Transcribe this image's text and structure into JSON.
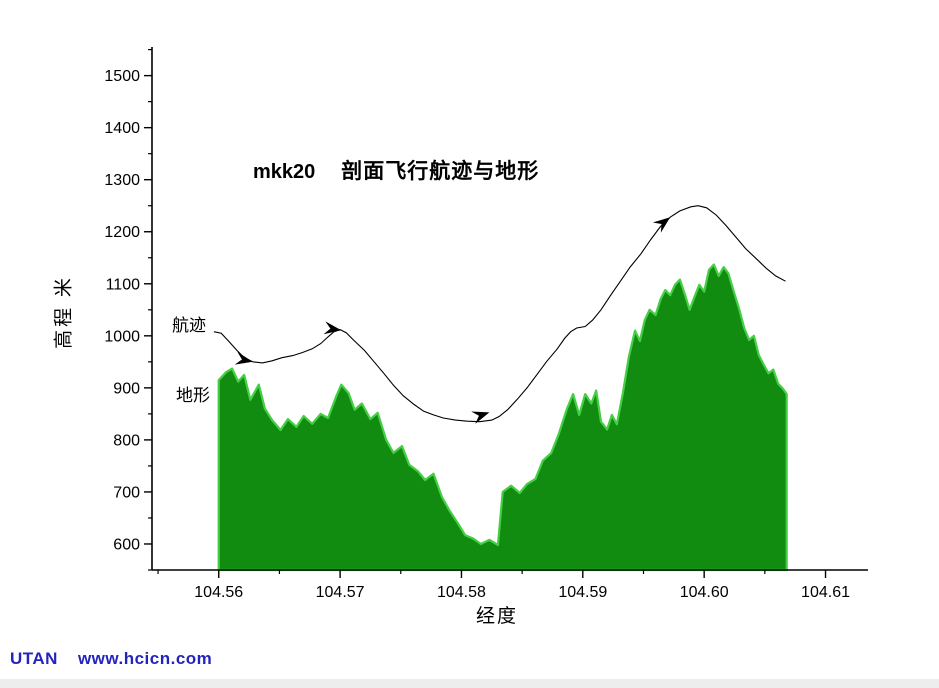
{
  "footer": {
    "brand": "UTAN",
    "url": "www.hcicn.com"
  },
  "chart_data": {
    "type": "line",
    "title_model": "mkk20",
    "title_text": "剖面飞行航迹与地形",
    "xlabel": "经度",
    "ylabel": "高程 米",
    "xlim": [
      104.5545,
      104.6135
    ],
    "ylim": [
      550,
      1555
    ],
    "x_tick_values": [
      104.56,
      104.57,
      104.58,
      104.59,
      104.6,
      104.61
    ],
    "x_tick_labels": [
      "104.56",
      "104.57",
      "104.58",
      "104.59",
      "104.60",
      "104.61"
    ],
    "x_minor_ticks": [
      104.555,
      104.565,
      104.575,
      104.585,
      104.595,
      104.605
    ],
    "y_tick_values": [
      600,
      700,
      800,
      900,
      1000,
      1100,
      1200,
      1300,
      1400,
      1500
    ],
    "y_tick_labels": [
      "600",
      "700",
      "800",
      "900",
      "1000",
      "1100",
      "1200",
      "1300",
      "1400",
      "1500"
    ],
    "y_minor_ticks": [
      550,
      650,
      750,
      850,
      950,
      1050,
      1150,
      1250,
      1350,
      1450,
      1550
    ],
    "annotations": {
      "track_label": "航迹",
      "terrain_label": "地形"
    },
    "series": {
      "track": {
        "name": "航迹",
        "color": "#000000",
        "points": [
          [
            104.5596,
            1008
          ],
          [
            104.5602,
            1005
          ],
          [
            104.5608,
            990
          ],
          [
            104.5615,
            972
          ],
          [
            104.5621,
            958
          ],
          [
            104.5628,
            950
          ],
          [
            104.5636,
            948
          ],
          [
            104.5644,
            952
          ],
          [
            104.5652,
            958
          ],
          [
            104.5661,
            962
          ],
          [
            104.5669,
            968
          ],
          [
            104.5677,
            975
          ],
          [
            104.5684,
            985
          ],
          [
            104.569,
            998
          ],
          [
            104.5695,
            1008
          ],
          [
            104.57,
            1012
          ],
          [
            104.5705,
            1006
          ],
          [
            104.5711,
            992
          ],
          [
            104.572,
            972
          ],
          [
            104.5728,
            950
          ],
          [
            104.5736,
            928
          ],
          [
            104.5744,
            905
          ],
          [
            104.5752,
            885
          ],
          [
            104.5761,
            868
          ],
          [
            104.5769,
            855
          ],
          [
            104.5777,
            848
          ],
          [
            104.5785,
            842
          ],
          [
            104.5795,
            838
          ],
          [
            104.5805,
            836
          ],
          [
            104.5815,
            835
          ],
          [
            104.5825,
            838
          ],
          [
            104.5831,
            845
          ],
          [
            104.5838,
            858
          ],
          [
            104.5846,
            878
          ],
          [
            104.5854,
            900
          ],
          [
            104.5862,
            925
          ],
          [
            104.587,
            950
          ],
          [
            104.5879,
            975
          ],
          [
            104.5885,
            995
          ],
          [
            104.589,
            1008
          ],
          [
            104.5895,
            1015
          ],
          [
            104.5902,
            1018
          ],
          [
            104.5908,
            1030
          ],
          [
            104.5915,
            1050
          ],
          [
            104.5923,
            1078
          ],
          [
            104.5931,
            1105
          ],
          [
            104.5939,
            1132
          ],
          [
            104.5948,
            1158
          ],
          [
            104.5956,
            1185
          ],
          [
            104.5964,
            1210
          ],
          [
            104.5972,
            1228
          ],
          [
            104.598,
            1240
          ],
          [
            104.5989,
            1248
          ],
          [
            104.5995,
            1250
          ],
          [
            104.6002,
            1246
          ],
          [
            104.601,
            1232
          ],
          [
            104.6018,
            1212
          ],
          [
            104.6026,
            1190
          ],
          [
            104.6034,
            1168
          ],
          [
            104.6043,
            1148
          ],
          [
            104.6051,
            1130
          ],
          [
            104.6059,
            1115
          ],
          [
            104.6067,
            1105
          ]
        ]
      },
      "terrain": {
        "name": "地形",
        "fill": "#118c11",
        "edge": "#44cf44",
        "base": 550,
        "points": [
          [
            104.56,
            915
          ],
          [
            104.5606,
            930
          ],
          [
            104.5611,
            937
          ],
          [
            104.5616,
            912
          ],
          [
            104.5621,
            925
          ],
          [
            104.5626,
            877
          ],
          [
            104.5633,
            906
          ],
          [
            104.5638,
            860
          ],
          [
            104.5644,
            838
          ],
          [
            104.5651,
            819
          ],
          [
            104.5657,
            840
          ],
          [
            104.5664,
            825
          ],
          [
            104.567,
            846
          ],
          [
            104.5677,
            831
          ],
          [
            104.5684,
            850
          ],
          [
            104.569,
            842
          ],
          [
            104.5697,
            885
          ],
          [
            104.5701,
            906
          ],
          [
            104.5707,
            890
          ],
          [
            104.5712,
            858
          ],
          [
            104.5718,
            870
          ],
          [
            104.5725,
            840
          ],
          [
            104.5731,
            852
          ],
          [
            104.5738,
            800
          ],
          [
            104.5744,
            775
          ],
          [
            104.5751,
            788
          ],
          [
            104.5757,
            752
          ],
          [
            104.5764,
            740
          ],
          [
            104.577,
            723
          ],
          [
            104.5777,
            735
          ],
          [
            104.5784,
            690
          ],
          [
            104.579,
            665
          ],
          [
            104.5797,
            640
          ],
          [
            104.5803,
            617
          ],
          [
            104.581,
            610
          ],
          [
            104.5816,
            600
          ],
          [
            104.5823,
            608
          ],
          [
            104.583,
            598
          ],
          [
            104.5834,
            700
          ],
          [
            104.5841,
            712
          ],
          [
            104.5848,
            698
          ],
          [
            104.5854,
            715
          ],
          [
            104.5861,
            725
          ],
          [
            104.5867,
            760
          ],
          [
            104.5874,
            775
          ],
          [
            104.588,
            810
          ],
          [
            104.5887,
            860
          ],
          [
            104.5892,
            888
          ],
          [
            104.5897,
            848
          ],
          [
            104.5902,
            888
          ],
          [
            104.5907,
            870
          ],
          [
            104.5911,
            895
          ],
          [
            104.5915,
            835
          ],
          [
            104.592,
            820
          ],
          [
            104.5924,
            848
          ],
          [
            104.5928,
            830
          ],
          [
            104.5933,
            890
          ],
          [
            104.5938,
            960
          ],
          [
            104.5943,
            1010
          ],
          [
            104.5947,
            990
          ],
          [
            104.5951,
            1030
          ],
          [
            104.5955,
            1050
          ],
          [
            104.596,
            1040
          ],
          [
            104.5964,
            1070
          ],
          [
            104.5968,
            1088
          ],
          [
            104.5972,
            1078
          ],
          [
            104.5976,
            1098
          ],
          [
            104.598,
            1108
          ],
          [
            104.5984,
            1080
          ],
          [
            104.5988,
            1050
          ],
          [
            104.5992,
            1075
          ],
          [
            104.5996,
            1098
          ],
          [
            104.6,
            1085
          ],
          [
            104.6004,
            1127
          ],
          [
            104.6008,
            1137
          ],
          [
            104.6012,
            1115
          ],
          [
            104.6016,
            1132
          ],
          [
            104.602,
            1120
          ],
          [
            104.6024,
            1088
          ],
          [
            104.6029,
            1050
          ],
          [
            104.6033,
            1015
          ],
          [
            104.6037,
            992
          ],
          [
            104.6041,
            1000
          ],
          [
            104.6045,
            963
          ],
          [
            104.6049,
            945
          ],
          [
            104.6053,
            928
          ],
          [
            104.6057,
            935
          ],
          [
            104.6061,
            908
          ],
          [
            104.6065,
            898
          ],
          [
            104.6068,
            888
          ]
        ]
      }
    },
    "arrows": [
      {
        "x": 104.5628,
        "angle_deg": 12,
        "dy": 0
      },
      {
        "x": 104.5701,
        "angle_deg": 8,
        "dy": 0
      },
      {
        "x": 104.5823,
        "angle_deg": -18,
        "dy": -8
      },
      {
        "x": 104.5972,
        "angle_deg": -38,
        "dy": 0
      }
    ]
  }
}
